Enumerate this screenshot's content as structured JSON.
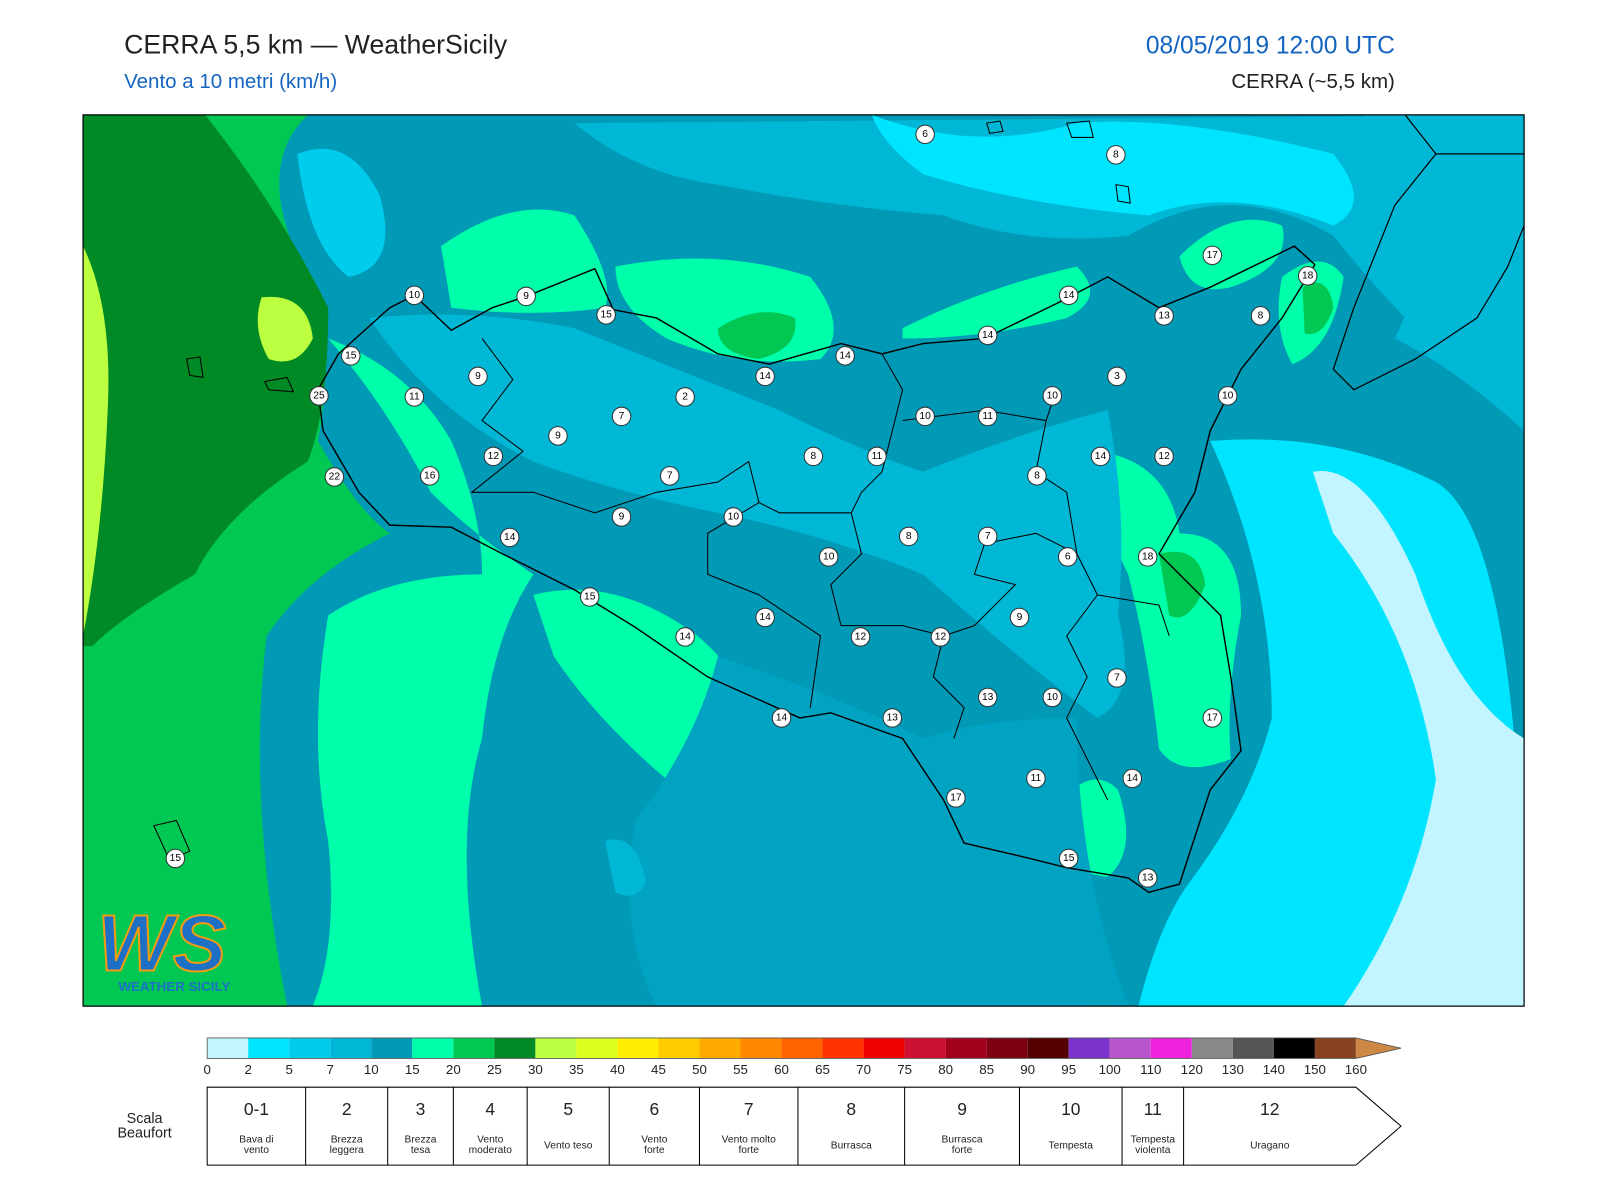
{
  "header": {
    "title": "CERRA 5,5 km — WeatherSicily",
    "subtitle": "Vento a 10 metri (km/h)",
    "datetime": "08/05/2019 12:00 UTC",
    "model": "CERRA (~5,5 km)"
  },
  "map": {
    "stations": [
      6,
      8,
      17,
      18,
      10,
      9,
      15,
      14,
      13,
      8,
      14,
      15,
      14,
      14,
      3,
      9,
      11,
      2,
      25,
      10,
      10,
      7,
      10,
      11,
      9,
      12,
      8,
      11,
      14,
      12,
      22,
      16,
      7,
      8,
      9,
      10,
      14,
      8,
      7,
      10,
      6,
      18,
      15,
      14,
      9,
      14,
      12,
      12,
      7,
      13,
      10,
      14,
      13,
      17,
      17,
      11,
      14,
      15,
      15,
      13
    ]
  },
  "logo": {
    "mark": "WS",
    "name": "WEATHER SICILY"
  },
  "colorbar": {
    "levels": [
      0,
      2,
      5,
      7,
      10,
      15,
      20,
      25,
      30,
      35,
      40,
      45,
      50,
      55,
      60,
      65,
      70,
      75,
      80,
      85,
      90,
      95,
      100,
      110,
      120,
      130,
      140,
      150,
      160
    ],
    "colors": [
      "#c2f5ff",
      "#00e5ff",
      "#00cdec",
      "#00b7d6",
      "#0099b6",
      "#00ffaa",
      "#00c853",
      "#008a25",
      "#bcff40",
      "#dcff20",
      "#ffee00",
      "#ffcc00",
      "#ffaa00",
      "#ff8800",
      "#ff6400",
      "#ff3300",
      "#ee0000",
      "#cc1133",
      "#a3001c",
      "#7c0012",
      "#550000",
      "#7a33cc",
      "#bb55cc",
      "#ee22dd",
      "#888888",
      "#555555",
      "#000000",
      "#884422",
      "#cc8844"
    ]
  },
  "beaufort": {
    "title": [
      "Scala",
      "Beaufort"
    ],
    "forces": [
      {
        "force": "0-1",
        "description": [
          "Bava di",
          "vento"
        ]
      },
      {
        "force": "2",
        "description": [
          "Brezza",
          "leggera"
        ]
      },
      {
        "force": "3",
        "description": [
          "Brezza",
          "tesa"
        ]
      },
      {
        "force": "4",
        "description": [
          "Vento",
          "moderato"
        ]
      },
      {
        "force": "5",
        "description": [
          "Vento teso"
        ]
      },
      {
        "force": "6",
        "description": [
          "Vento",
          "forte"
        ]
      },
      {
        "force": "7",
        "description": [
          "Vento molto",
          "forte"
        ]
      },
      {
        "force": "8",
        "description": [
          "Burrasca"
        ]
      },
      {
        "force": "9",
        "description": [
          "Burrasca",
          "forte"
        ]
      },
      {
        "force": "10",
        "description": [
          "Tempesta"
        ]
      },
      {
        "force": "11",
        "description": [
          "Tempesta",
          "violenta"
        ]
      },
      {
        "force": "12",
        "description": [
          "Uragano"
        ]
      }
    ]
  }
}
